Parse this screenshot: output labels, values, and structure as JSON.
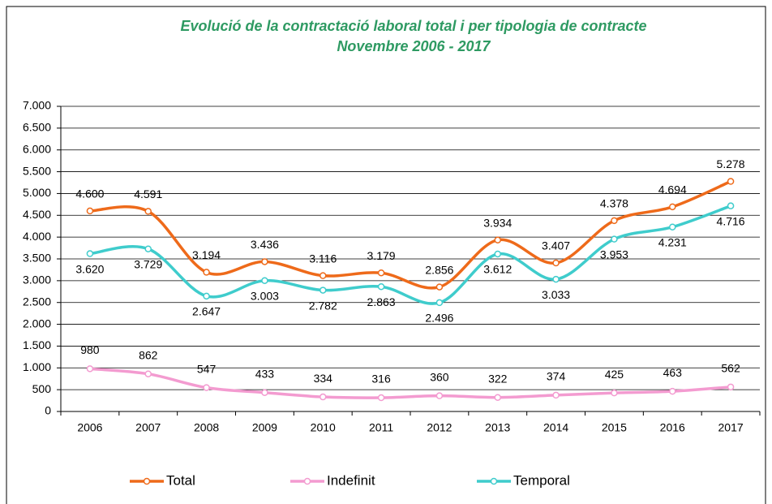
{
  "chart_data": {
    "type": "line",
    "title": "Evolució de la contractació laboral total i per tipologia de contracte",
    "subtitle": "Novembre 2006 - 2017",
    "categories": [
      "2006",
      "2007",
      "2008",
      "2009",
      "2010",
      "2011",
      "2012",
      "2013",
      "2014",
      "2015",
      "2016",
      "2017"
    ],
    "series": [
      {
        "name": "Total",
        "color": "#ee6a1a",
        "values": [
          4600,
          4591,
          3194,
          3436,
          3116,
          3179,
          2856,
          3934,
          3407,
          4378,
          4694,
          5278
        ],
        "value_labels": [
          "4.600",
          "4.591",
          "3.194",
          "3.436",
          "3.116",
          "3.179",
          "2.856",
          "3.934",
          "3.407",
          "4.378",
          "4.694",
          "5.278"
        ]
      },
      {
        "name": "Indefinit",
        "color": "#f39bd0",
        "values": [
          980,
          862,
          547,
          433,
          334,
          316,
          360,
          322,
          374,
          425,
          463,
          562
        ]
      },
      {
        "name": "Temporal",
        "color": "#3fcccc",
        "values": [
          3620,
          3729,
          2647,
          3003,
          2782,
          2863,
          2496,
          3612,
          3033,
          3953,
          4231,
          4716
        ],
        "value_labels": [
          "3.620",
          "3.729",
          "2.647",
          "3.003",
          "2.782",
          "2.863",
          "2.496",
          "3.612",
          "3.033",
          "3.953",
          "4.231",
          "4.716"
        ]
      }
    ],
    "ylim": [
      0,
      7000
    ],
    "yticks": [
      0,
      500,
      {
        "value": 1000,
        "label": "1.000"
      },
      {
        "value": 1500,
        "label": "1.500"
      },
      {
        "value": 2000,
        "label": "2.000"
      },
      {
        "value": 2500,
        "label": "2.500"
      },
      {
        "value": 3000,
        "label": "3.000"
      },
      {
        "value": 3500,
        "label": "3.500"
      },
      {
        "value": 4000,
        "label": "4.000"
      },
      {
        "value": 4500,
        "label": "4.500"
      },
      {
        "value": 5000,
        "label": "5.000"
      },
      {
        "value": 5500,
        "label": "5.500"
      },
      {
        "value": 6000,
        "label": "6.000"
      },
      {
        "value": 6500,
        "label": "6.500"
      },
      {
        "value": 7000,
        "label": "7.000"
      }
    ],
    "grid": true,
    "legend": "bottom"
  }
}
